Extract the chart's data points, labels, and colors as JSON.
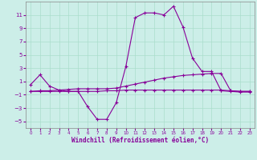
{
  "xlabel": "Windchill (Refroidissement éolien,°C)",
  "bg_color": "#cceee8",
  "grid_color": "#aaddcc",
  "line_color": "#880099",
  "x_values": [
    0,
    1,
    2,
    3,
    4,
    5,
    6,
    7,
    8,
    9,
    10,
    11,
    12,
    13,
    14,
    15,
    16,
    17,
    18,
    19,
    20,
    21,
    22,
    23
  ],
  "curve1": [
    0.5,
    2.0,
    0.3,
    -0.3,
    -0.5,
    -0.5,
    -2.8,
    -4.7,
    -4.7,
    -2.2,
    3.2,
    10.6,
    11.3,
    11.3,
    11.0,
    12.3,
    9.2,
    4.5,
    2.5,
    2.5,
    -0.4,
    -0.5,
    -0.6,
    -0.6
  ],
  "curve2": [
    -0.5,
    -0.5,
    -0.5,
    -0.5,
    -0.5,
    -0.5,
    -0.5,
    -0.5,
    -0.4,
    -0.4,
    -0.3,
    -0.3,
    -0.3,
    -0.3,
    -0.3,
    -0.3,
    -0.3,
    -0.3,
    -0.3,
    -0.3,
    -0.3,
    -0.4,
    -0.5,
    -0.5
  ],
  "curve3": [
    -0.5,
    -0.4,
    -0.4,
    -0.3,
    -0.2,
    -0.1,
    -0.1,
    -0.1,
    -0.1,
    0.0,
    0.3,
    0.6,
    0.9,
    1.2,
    1.5,
    1.7,
    1.9,
    2.0,
    2.1,
    2.2,
    2.2,
    -0.4,
    -0.5,
    -0.5
  ],
  "ylim": [
    -6,
    13
  ],
  "xlim": [
    -0.5,
    23.5
  ],
  "yticks": [
    -5,
    -3,
    -1,
    1,
    3,
    5,
    7,
    9,
    11
  ]
}
